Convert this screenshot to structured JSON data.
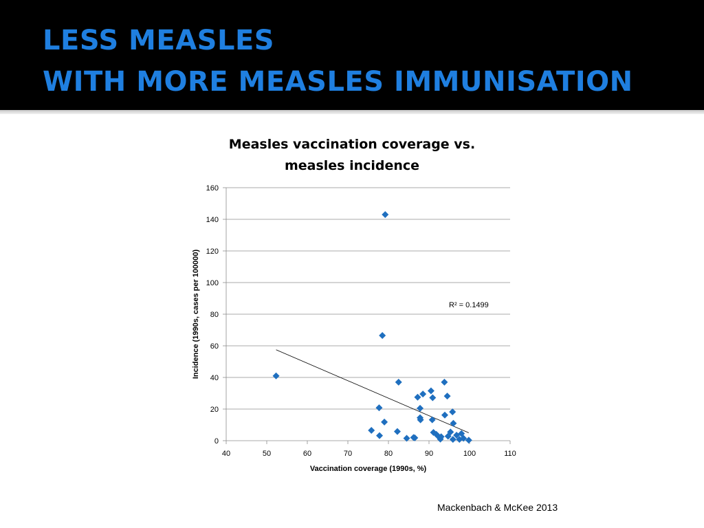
{
  "slide": {
    "title_line1": "LESS MEASLES",
    "title_line2": "WITH MORE MEASLES IMMUNISATION",
    "title_color": "#1f7fe0",
    "citation": "Mackenbach & McKee 2013"
  },
  "chart_data": {
    "type": "scatter",
    "title_line1": "Measles vaccination coverage vs.",
    "title_line2": "measles incidence",
    "xlabel": "Vaccination coverage (1990s, %)",
    "ylabel": "Incidence (1990s, cases per 100000)",
    "xlim": [
      40,
      110
    ],
    "ylim": [
      0,
      160
    ],
    "xticks": [
      40,
      50,
      60,
      70,
      80,
      90,
      100,
      110
    ],
    "yticks": [
      0,
      20,
      40,
      60,
      80,
      100,
      120,
      140,
      160
    ],
    "grid": "horizontal",
    "marker": "diamond",
    "color": "#1f6fbf",
    "points": [
      {
        "x": 52.3,
        "y": 41
      },
      {
        "x": 75.8,
        "y": 6.5
      },
      {
        "x": 77.7,
        "y": 20.8
      },
      {
        "x": 77.8,
        "y": 3.2
      },
      {
        "x": 78.5,
        "y": 66.5
      },
      {
        "x": 79.0,
        "y": 11.8
      },
      {
        "x": 79.2,
        "y": 143
      },
      {
        "x": 82.2,
        "y": 5.8
      },
      {
        "x": 82.5,
        "y": 37
      },
      {
        "x": 84.5,
        "y": 1.5
      },
      {
        "x": 86.2,
        "y": 2.0
      },
      {
        "x": 86.5,
        "y": 1.8
      },
      {
        "x": 87.2,
        "y": 27.5
      },
      {
        "x": 87.8,
        "y": 20.5
      },
      {
        "x": 87.8,
        "y": 14.5
      },
      {
        "x": 87.9,
        "y": 13.2
      },
      {
        "x": 88.5,
        "y": 29.5
      },
      {
        "x": 90.5,
        "y": 31.5
      },
      {
        "x": 90.8,
        "y": 13.2
      },
      {
        "x": 90.9,
        "y": 27.2
      },
      {
        "x": 91.1,
        "y": 5.2
      },
      {
        "x": 91.8,
        "y": 4.0
      },
      {
        "x": 92.2,
        "y": 3.0
      },
      {
        "x": 92.8,
        "y": 1.0
      },
      {
        "x": 93.0,
        "y": 2.5
      },
      {
        "x": 93.8,
        "y": 37
      },
      {
        "x": 93.9,
        "y": 16.2
      },
      {
        "x": 94.5,
        "y": 28.2
      },
      {
        "x": 94.7,
        "y": 2.8
      },
      {
        "x": 95.3,
        "y": 5.5
      },
      {
        "x": 95.8,
        "y": 18.2
      },
      {
        "x": 95.9,
        "y": 0.8
      },
      {
        "x": 96.0,
        "y": 11.0
      },
      {
        "x": 96.8,
        "y": 3.5
      },
      {
        "x": 97.5,
        "y": 0.8
      },
      {
        "x": 98.0,
        "y": 4.5
      },
      {
        "x": 98.5,
        "y": 1.5
      },
      {
        "x": 99.8,
        "y": 0.3
      }
    ],
    "trendline": {
      "type": "linear",
      "x_start": 52.3,
      "y_start": 57.5,
      "x_end": 99.8,
      "y_end": 5.0
    },
    "annotation": "R² = 0.1499"
  }
}
